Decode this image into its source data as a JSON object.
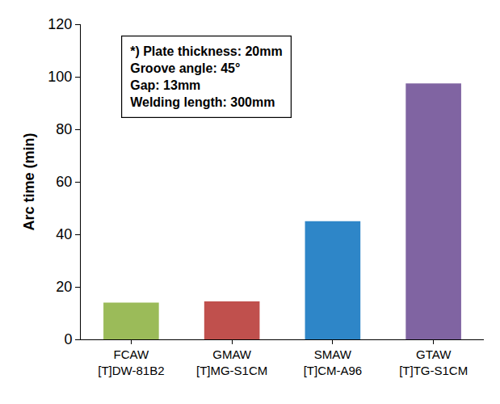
{
  "chart_data": {
    "type": "bar",
    "y_label": "Arc time (min)",
    "categories": [
      "FCAW\n[T]DW-81B2",
      "GMAW\n[T]MG-S1CM",
      "SMAW\n[T]CM-A96",
      "GTAW\n[T]TG-S1CM"
    ],
    "values": [
      14,
      14.5,
      45,
      97.5
    ],
    "colors": [
      "#9bbb59",
      "#c0504d",
      "#2e86c8",
      "#8064a2"
    ],
    "ylim": [
      0,
      120
    ],
    "yticks": [
      0,
      20,
      40,
      60,
      80,
      100,
      120
    ],
    "grid": false,
    "annotation": [
      "*) Plate thickness: 20mm",
      "Groove angle: 45°",
      "Gap: 13mm",
      "Welding length: 300mm"
    ]
  }
}
